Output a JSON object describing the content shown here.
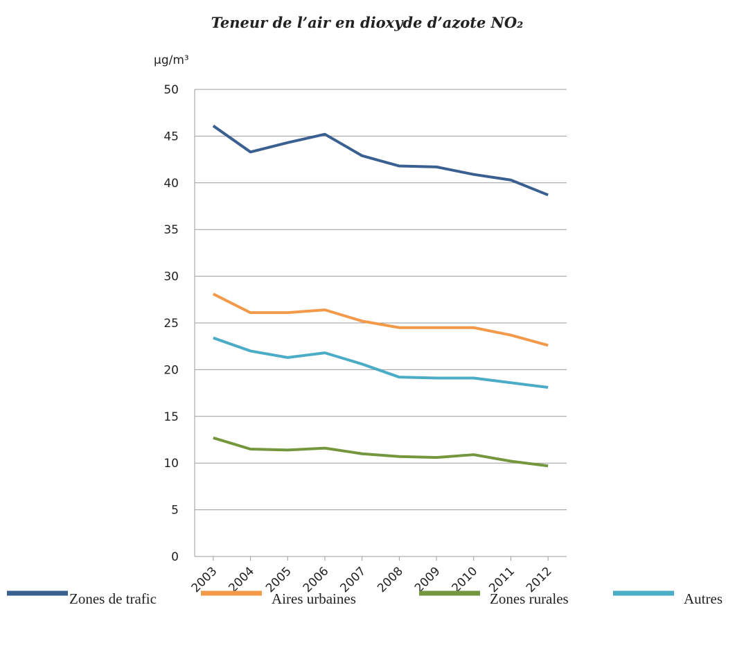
{
  "chart_data": {
    "type": "line",
    "title": "Teneur de l’air en dioxyde d’azote NO₂",
    "y_label": "µg/m³",
    "categories": [
      "2003",
      "2004",
      "2005",
      "2006",
      "2007",
      "2008",
      "2009",
      "2010",
      "2011",
      "2012"
    ],
    "series": [
      {
        "name": "Zones de trafic",
        "color": "#3a5f91",
        "values": [
          46.1,
          43.3,
          44.3,
          45.2,
          42.9,
          41.8,
          41.7,
          40.9,
          40.3,
          38.7
        ]
      },
      {
        "name": "Aires urbaines",
        "color": "#f39a4a",
        "values": [
          28.1,
          26.1,
          26.1,
          26.4,
          25.2,
          24.5,
          24.5,
          24.5,
          23.7,
          22.6
        ]
      },
      {
        "name": "Zones rurales",
        "color": "#74963c",
        "values": [
          12.7,
          11.5,
          11.4,
          11.6,
          11.0,
          10.7,
          10.6,
          10.9,
          10.2,
          9.7
        ]
      },
      {
        "name": "Autres",
        "color": "#4bacc6",
        "values": [
          23.4,
          22.0,
          21.3,
          21.8,
          20.6,
          19.2,
          19.1,
          19.1,
          18.6,
          18.1
        ]
      }
    ],
    "ylim": [
      0,
      50
    ],
    "yticks": [
      0,
      5,
      10,
      15,
      20,
      25,
      30,
      35,
      40,
      45,
      50
    ],
    "grid": true
  }
}
